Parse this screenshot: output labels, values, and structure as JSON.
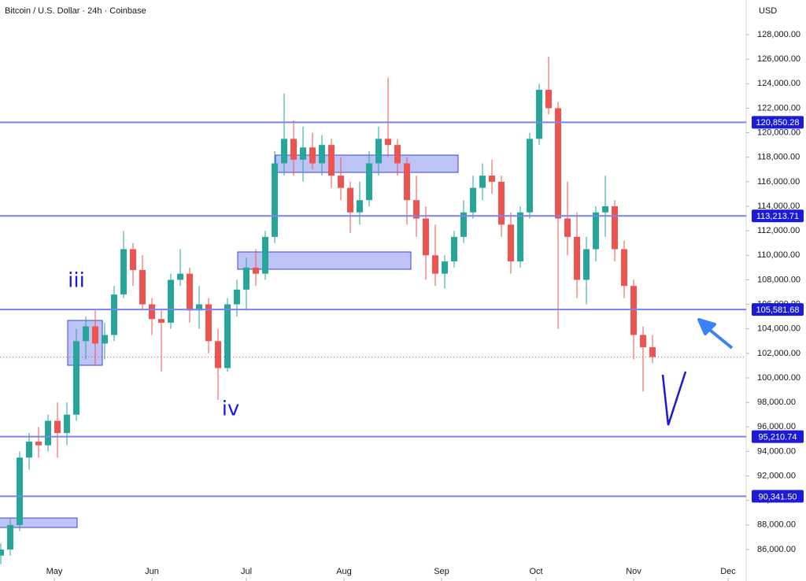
{
  "chart_data": {
    "type": "candlestick",
    "title": "Bitcoin / U.S. Dollar · 24h · Coinbase",
    "currency": "USD",
    "x": [
      -17,
      -14,
      -11,
      -8,
      -5,
      -2,
      1,
      4,
      7,
      10,
      13,
      16,
      19,
      22,
      25,
      28,
      31,
      34,
      37,
      40,
      43,
      46,
      49,
      52,
      55,
      58,
      61,
      64,
      67,
      70,
      73,
      76,
      79,
      82,
      85,
      88,
      91,
      94,
      97,
      100,
      103,
      106,
      109,
      112,
      115,
      118,
      121,
      124,
      127,
      130,
      133,
      136,
      139,
      142,
      145,
      148,
      151,
      154,
      157,
      160,
      163,
      166,
      169,
      172,
      175,
      178,
      181,
      184,
      187,
      190
    ],
    "open": [
      85500,
      86000,
      88000,
      93500,
      94800,
      94500,
      96500,
      95500,
      97000,
      103000,
      104200,
      102800,
      103500,
      106800,
      110500,
      108800,
      106000,
      104800,
      104500,
      108000,
      108500,
      105500,
      106000,
      103000,
      100800,
      106000,
      107200,
      109000,
      108500,
      111500,
      117500,
      119500,
      117800,
      118800,
      117500,
      119000,
      116500,
      115500,
      113500,
      114500,
      117500,
      119500,
      119000,
      117500,
      114500,
      113000,
      110000,
      108500,
      109500,
      111500,
      113500,
      115500,
      116500,
      116000,
      112500,
      109500,
      113500,
      119500,
      123500,
      122000,
      113000,
      111500,
      108000,
      110500,
      113500,
      114000,
      110500,
      107500,
      103500,
      102500
    ],
    "high": [
      86500,
      88500,
      94000,
      95500,
      96000,
      97000,
      98000,
      98000,
      104000,
      105000,
      105500,
      104500,
      107500,
      112000,
      111000,
      110000,
      106500,
      105500,
      108500,
      110500,
      109000,
      107500,
      106500,
      104000,
      106500,
      108000,
      109800,
      110500,
      112000,
      118500,
      123200,
      121000,
      120500,
      120000,
      119800,
      119500,
      118000,
      116000,
      116000,
      118500,
      120500,
      124500,
      119500,
      118000,
      116500,
      114000,
      112500,
      110000,
      112000,
      114500,
      116500,
      117500,
      117800,
      116500,
      113500,
      114000,
      120000,
      124000,
      126200,
      122500,
      116000,
      113500,
      111500,
      114000,
      116500,
      114500,
      111200,
      108000,
      104200,
      103500
    ],
    "low": [
      84800,
      85500,
      87500,
      92500,
      93500,
      94000,
      93500,
      94500,
      96500,
      101500,
      101000,
      101500,
      103000,
      106500,
      107500,
      105500,
      103500,
      100500,
      104000,
      107500,
      104500,
      104000,
      102000,
      98200,
      100500,
      105000,
      105500,
      107500,
      108000,
      111000,
      116500,
      116500,
      116000,
      117000,
      116500,
      115500,
      114500,
      111800,
      112500,
      114000,
      116500,
      118000,
      116500,
      112500,
      111500,
      108000,
      107500,
      107300,
      109000,
      111000,
      113000,
      114500,
      115000,
      111500,
      108500,
      109000,
      113000,
      119000,
      121500,
      104000,
      110000,
      106500,
      106000,
      109500,
      111500,
      109500,
      106500,
      101500,
      98900,
      101200
    ],
    "close": [
      86000,
      88000,
      93500,
      94800,
      94500,
      96500,
      95500,
      97000,
      103000,
      104200,
      102800,
      103500,
      106800,
      110500,
      108800,
      106000,
      104800,
      104500,
      108000,
      108500,
      105500,
      106000,
      103000,
      100800,
      106000,
      107200,
      109000,
      108500,
      111500,
      117500,
      119500,
      117800,
      118800,
      117500,
      119000,
      116500,
      115500,
      113500,
      114500,
      117500,
      119500,
      119000,
      117500,
      114500,
      113000,
      110000,
      108500,
      109500,
      111500,
      113500,
      115500,
      116500,
      116000,
      112500,
      109500,
      113500,
      119500,
      123500,
      122000,
      113000,
      111500,
      108000,
      110500,
      113500,
      114000,
      110500,
      107500,
      103500,
      102500,
      101700
    ],
    "up_color": "#26a69a",
    "down_color": "#ef5350",
    "level_color": "#7b83eb",
    "xlim": [
      -17.25,
      219.75
    ],
    "xticks": [
      {
        "value": 0,
        "label": "May"
      },
      {
        "value": 31,
        "label": "Jun"
      },
      {
        "value": 61,
        "label": "Jul"
      },
      {
        "value": 92,
        "label": "Aug"
      },
      {
        "value": 123,
        "label": "Sep"
      },
      {
        "value": 153,
        "label": "Oct"
      },
      {
        "value": 184,
        "label": "Nov"
      },
      {
        "value": 214,
        "label": "Dec"
      }
    ],
    "ylim": [
      83430,
      130826
    ],
    "yticks": [
      {
        "value": 86000,
        "label": "86,000.00"
      },
      {
        "value": 88000,
        "label": "88,000.00"
      },
      {
        "value": 90000,
        "label": "90,000.00"
      },
      {
        "value": 92000,
        "label": "92,000.00"
      },
      {
        "value": 94000,
        "label": "94,000.00"
      },
      {
        "value": 96000,
        "label": "96,000.00"
      },
      {
        "value": 98000,
        "label": "98,000.00"
      },
      {
        "value": 100000,
        "label": "100,000.00"
      },
      {
        "value": 102000,
        "label": "102,000.00"
      },
      {
        "value": 104000,
        "label": "104,000.00"
      },
      {
        "value": 106000,
        "label": "106,000.00"
      },
      {
        "value": 108000,
        "label": "108,000.00"
      },
      {
        "value": 110000,
        "label": "110,000.00"
      },
      {
        "value": 112000,
        "label": "112,000.00"
      },
      {
        "value": 114000,
        "label": "114,000.00"
      },
      {
        "value": 116000,
        "label": "116,000.00"
      },
      {
        "value": 118000,
        "label": "118,000.00"
      },
      {
        "value": 120000,
        "label": "120,000.00"
      },
      {
        "value": 122000,
        "label": "122,000.00"
      },
      {
        "value": 124000,
        "label": "124,000.00"
      },
      {
        "value": 126000,
        "label": "126,000.00"
      },
      {
        "value": 128000,
        "label": "128,000.00"
      }
    ],
    "levels": [
      {
        "value": 120850.28,
        "label": "120,850.28"
      },
      {
        "value": 113213.71,
        "label": "113,213.71"
      },
      {
        "value": 105581.68,
        "label": "105,581.68"
      },
      {
        "value": 95210.74,
        "label": "95,210.74"
      },
      {
        "value": 90341.5,
        "label": "90,341.50"
      }
    ],
    "annotations": [
      "iii",
      "iv"
    ]
  }
}
